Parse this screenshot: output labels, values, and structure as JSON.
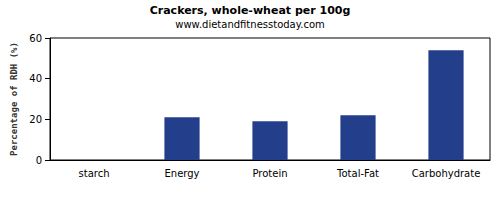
{
  "chart_data": {
    "type": "bar",
    "title": "Crackers, whole-wheat per 100g",
    "subtitle": "www.dietandfitnesstoday.com",
    "y_label": "Percentage of RDH (%)",
    "categories": [
      "starch",
      "Energy",
      "Protein",
      "Total-Fat",
      "Carbohydrate"
    ],
    "values": [
      0,
      21,
      19,
      22,
      54
    ],
    "color": "#233f8c",
    "ylim": [
      0,
      60
    ],
    "yticks": [
      0,
      20,
      40,
      60
    ],
    "grid": false
  }
}
